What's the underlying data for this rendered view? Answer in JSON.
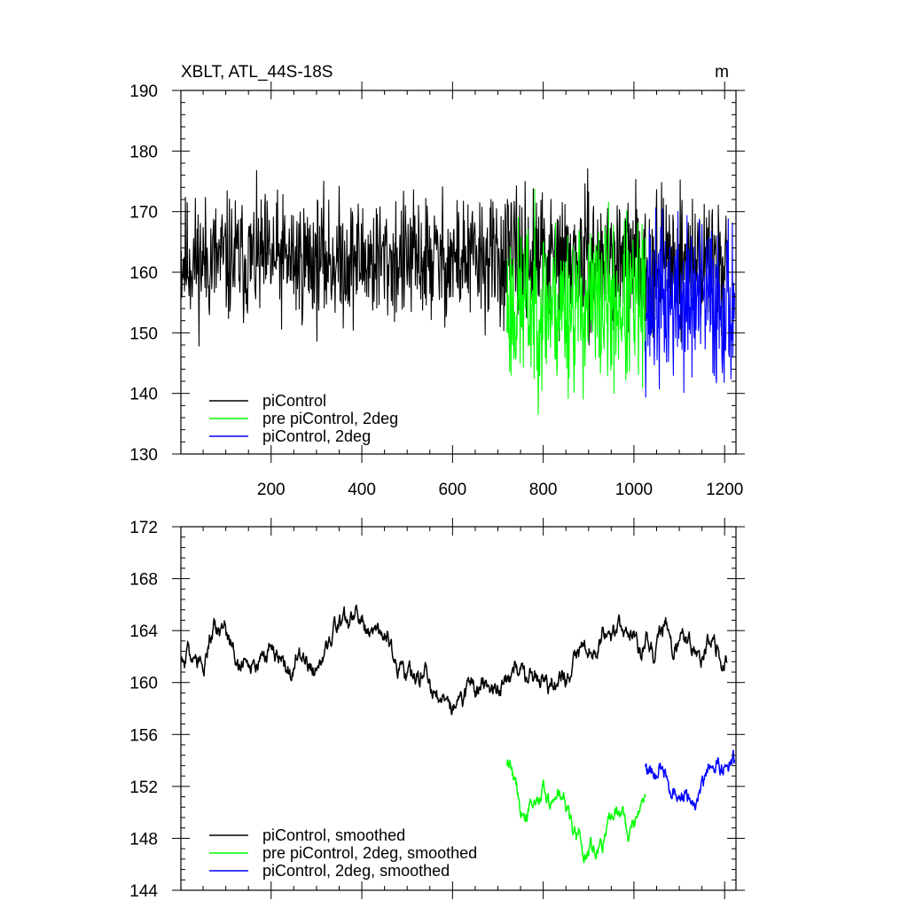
{
  "colors": {
    "piControl": "#000000",
    "pre_piControl_2deg": "#00ff00",
    "piControl_2deg": "#0000ff"
  },
  "chart_data": [
    {
      "type": "line",
      "title": "XBLT, ATL_44S-18S",
      "units": "m",
      "xlim": [
        1,
        1225
      ],
      "ylim": [
        130,
        190
      ],
      "x_ticks": [
        200,
        400,
        600,
        800,
        1000,
        1200
      ],
      "x_tick_labels": [
        "200",
        "400",
        "600",
        "800",
        "1000",
        "1200"
      ],
      "y_ticks": [
        130,
        140,
        150,
        160,
        170,
        180,
        190
      ],
      "y_tick_labels": [
        "130",
        "140",
        "150",
        "160",
        "170",
        "180",
        "190"
      ],
      "legend_position": "bottom-left",
      "series": [
        {
          "name": "piControl",
          "color": "#000000",
          "x_range": [
            1,
            1205
          ],
          "mean": 162,
          "spread": 4.5,
          "noise": "high",
          "seed": 11
        },
        {
          "name": "pre piControl, 2deg",
          "color": "#00ff00",
          "x_range": [
            720,
            1025
          ],
          "mean": 154.5,
          "spread": 6.0,
          "noise": "high",
          "seed": 23
        },
        {
          "name": "piControl, 2deg",
          "color": "#0000ff",
          "x_range": [
            1025,
            1222
          ],
          "mean": 155,
          "spread": 6.0,
          "noise": "high",
          "seed": 37
        }
      ]
    },
    {
      "type": "line",
      "title": "",
      "xlim": [
        1,
        1225
      ],
      "ylim": [
        144,
        172
      ],
      "x_ticks": [
        200,
        400,
        600,
        800,
        1000,
        1200
      ],
      "y_ticks": [
        144,
        148,
        152,
        156,
        160,
        164,
        168,
        172
      ],
      "y_tick_labels": [
        "144",
        "148",
        "152",
        "156",
        "160",
        "164",
        "168",
        "172"
      ],
      "legend_position": "bottom-left",
      "series": [
        {
          "name": "piControl, smoothed",
          "color": "#000000",
          "x_range": [
            1,
            1205
          ],
          "mean": 161.5,
          "spread": 1.9,
          "noise": "smoothed",
          "seed": 51
        },
        {
          "name": "pre piControl, 2deg, smoothed",
          "color": "#00ff00",
          "x_range": [
            720,
            1025
          ],
          "mean": 153.2,
          "spread": 1.8,
          "noise": "smoothed",
          "seed": 63
        },
        {
          "name": "piControl, 2deg, smoothed",
          "color": "#0000ff",
          "x_range": [
            1025,
            1222
          ],
          "mean": 153.6,
          "spread": 1.8,
          "noise": "smoothed",
          "seed": 79
        }
      ]
    }
  ]
}
